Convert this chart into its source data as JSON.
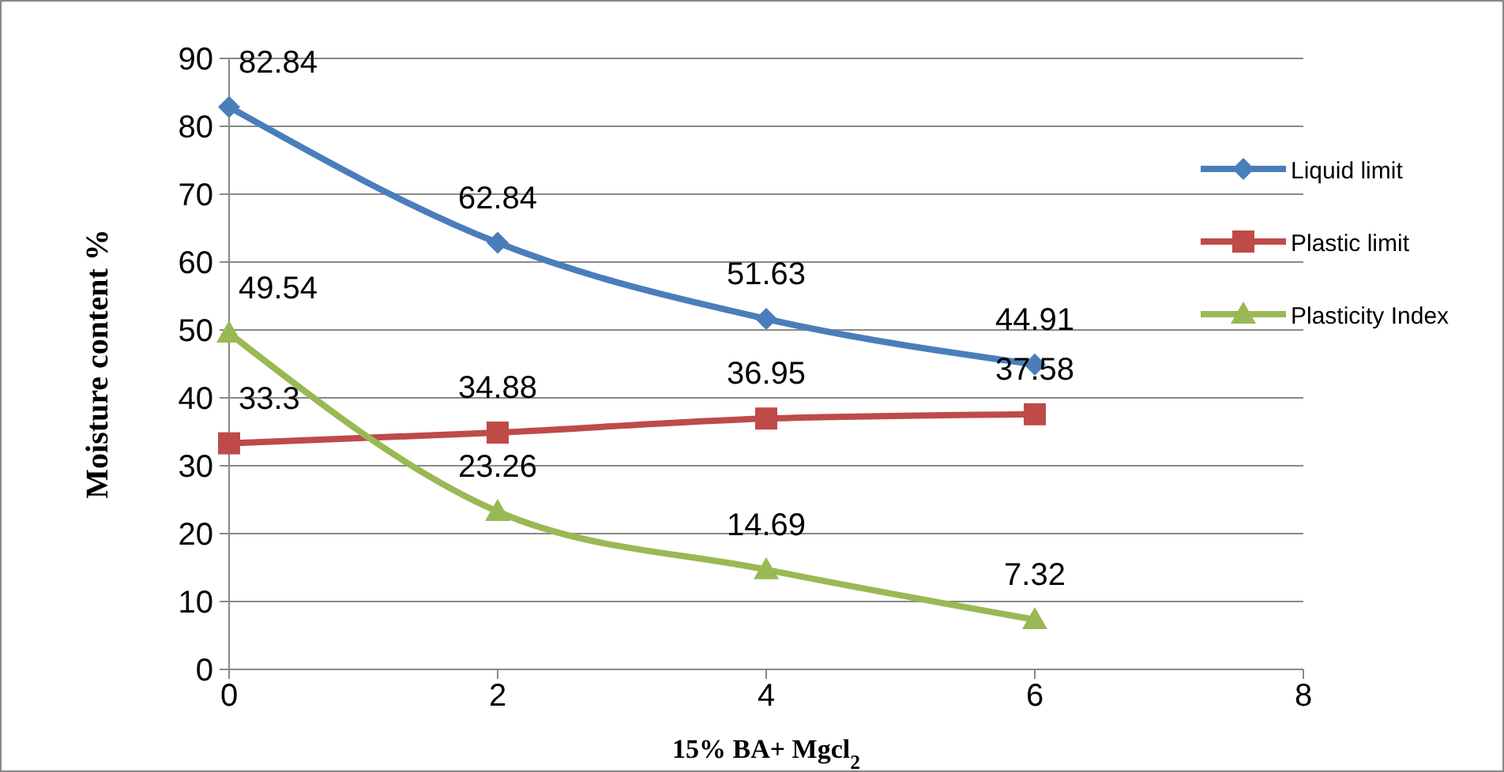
{
  "chart_data": {
    "type": "line",
    "xlabel": "15% BA+ Mgcl$_{2}$",
    "ylabel": "Moisture content %",
    "x": [
      0,
      2,
      4,
      6
    ],
    "series": [
      {
        "name": "Liquid limit",
        "color": "#4a7ebb",
        "marker": "diamond",
        "values": [
          82.84,
          62.84,
          51.63,
          44.91
        ]
      },
      {
        "name": "Plastic limit",
        "color": "#be4b48",
        "marker": "square",
        "values": [
          33.3,
          34.88,
          36.95,
          37.58
        ]
      },
      {
        "name": "Plasticity Index",
        "color": "#98b954",
        "marker": "triangle",
        "values": [
          49.54,
          23.26,
          14.69,
          7.32
        ]
      }
    ],
    "xlim": [
      0,
      8
    ],
    "xticks": [
      0,
      2,
      4,
      6,
      8
    ],
    "ylim": [
      0,
      90
    ],
    "yticks": [
      0,
      10,
      20,
      30,
      40,
      50,
      60,
      70,
      80,
      90
    ],
    "grid": "y",
    "legend": "right",
    "data_labels": true,
    "line_style": "solid"
  }
}
